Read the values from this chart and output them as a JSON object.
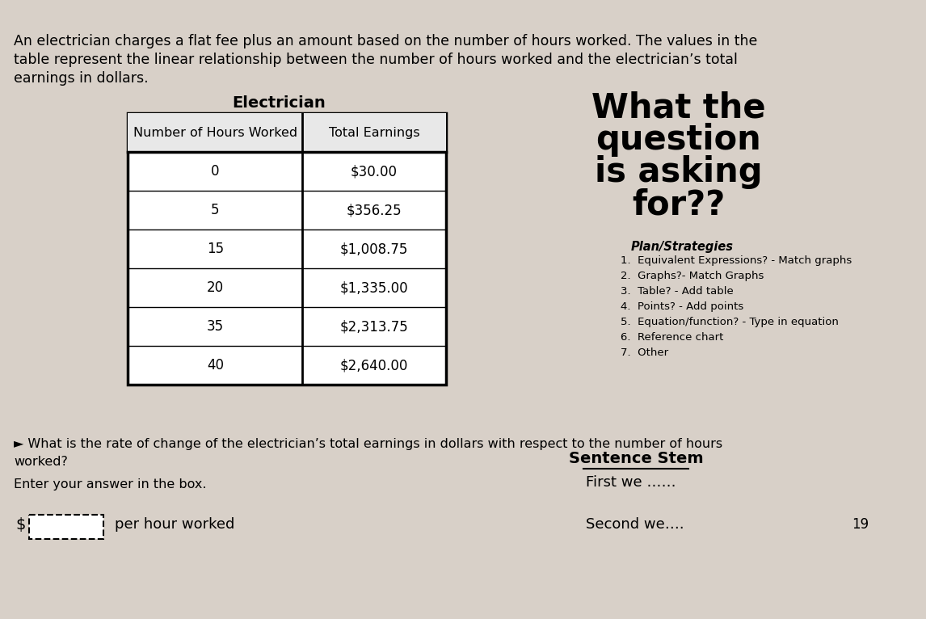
{
  "background_color": "#d8d0c8",
  "intro_text_line1": "An electrician charges a flat fee plus an amount based on the number of hours worked. The values in the",
  "intro_text_line2": "table represent the linear relationship between the number of hours worked and the electrician’s total",
  "intro_text_line3": "earnings in dollars.",
  "table_title": "Electrician",
  "col1_header": "Number of Hours Worked",
  "col2_header": "Total Earnings",
  "table_data": [
    [
      "0",
      "$30.00"
    ],
    [
      "5",
      "$356.25"
    ],
    [
      "15",
      "$1,008.75"
    ],
    [
      "20",
      "$1,335.00"
    ],
    [
      "35",
      "$2,313.75"
    ],
    [
      "40",
      "$2,640.00"
    ]
  ],
  "right_title_line1": "What the",
  "right_title_line2": "question",
  "right_title_line3": "is asking",
  "right_title_line4": "for??",
  "plan_title": "Plan/Strategies",
  "plan_items": [
    "1.  Equivalent Expressions? - Match graphs",
    "2.  Graphs?- Match Graphs",
    "3.  Table? - Add table",
    "4.  Points? - Add points",
    "5.  Equation/function? - Type in equation",
    "6.  Reference chart",
    "7.  Other"
  ],
  "question_prefix": "► What is the rate of change of the electrician’s total earnings in dollars with respect to the number of hours",
  "question_suffix": "worked?",
  "enter_text": "Enter your answer in the box.",
  "dollar_sign": "$",
  "per_hour_text": "per hour worked",
  "sentence_stem_title": "Sentence Stem",
  "sentence_stem_1": "First we ……",
  "sentence_stem_2": "Second we….",
  "page_number": "19"
}
